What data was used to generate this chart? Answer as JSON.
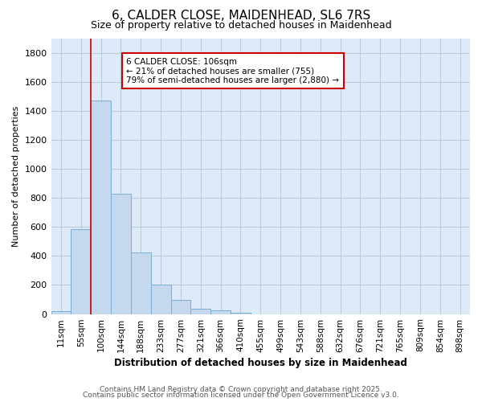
{
  "title": "6, CALDER CLOSE, MAIDENHEAD, SL6 7RS",
  "subtitle": "Size of property relative to detached houses in Maidenhead",
  "xlabel": "Distribution of detached houses by size in Maidenhead",
  "ylabel": "Number of detached properties",
  "bar_color": "#c5d8ee",
  "bar_edge_color": "#7aaed4",
  "bg_color": "#deeaf7",
  "grid_color": "#b8ccdd",
  "vline_color": "#cc0000",
  "vline_x_index": 2,
  "annotation_text": "6 CALDER CLOSE: 106sqm\n← 21% of detached houses are smaller (755)\n79% of semi-detached houses are larger (2,880) →",
  "annotation_box_color": "#cc0000",
  "categories": [
    "11sqm",
    "55sqm",
    "100sqm",
    "144sqm",
    "188sqm",
    "233sqm",
    "277sqm",
    "321sqm",
    "366sqm",
    "410sqm",
    "455sqm",
    "499sqm",
    "543sqm",
    "588sqm",
    "632sqm",
    "676sqm",
    "721sqm",
    "765sqm",
    "809sqm",
    "854sqm",
    "898sqm"
  ],
  "values": [
    20,
    585,
    1470,
    830,
    425,
    200,
    100,
    35,
    25,
    10,
    0,
    0,
    0,
    0,
    0,
    0,
    0,
    0,
    0,
    0,
    0
  ],
  "ylim": [
    0,
    1900
  ],
  "yticks": [
    0,
    200,
    400,
    600,
    800,
    1000,
    1200,
    1400,
    1600,
    1800
  ],
  "footer1": "Contains HM Land Registry data © Crown copyright and database right 2025.",
  "footer2": "Contains public sector information licensed under the Open Government Licence v3.0."
}
